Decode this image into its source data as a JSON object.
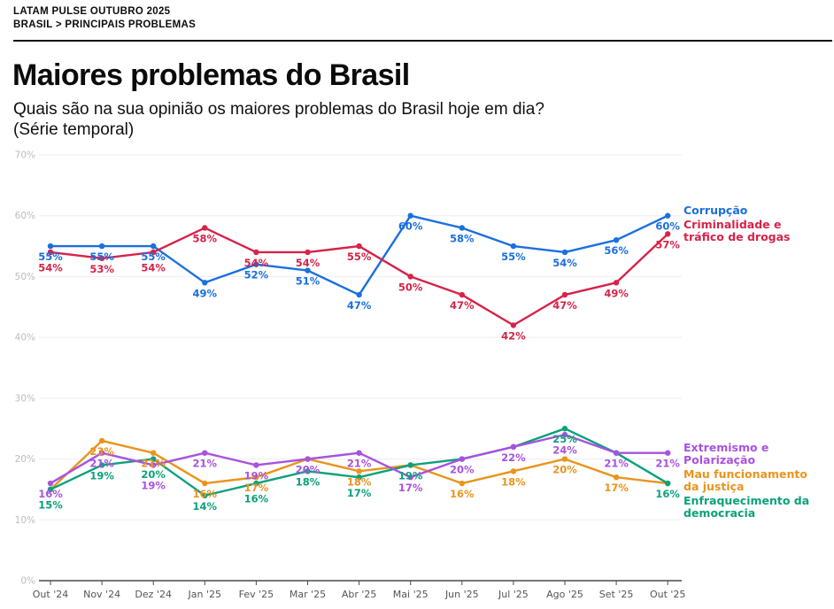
{
  "header": {
    "line1": "LATAM PULSE OUTUBRO 2025",
    "line2": "BRASIL > PRINCIPAIS PROBLEMAS"
  },
  "title": "Maiores problemas do Brasil",
  "subtitle_line1": "Quais são na sua opinião os maiores problemas do Brasil hoje em dia?",
  "subtitle_line2": "(Série temporal)",
  "chart_data": {
    "type": "line",
    "unit": "%",
    "categories": [
      "Out '24",
      "Nov '24",
      "Dez '24",
      "Jan '25",
      "Fev '25",
      "Mar '25",
      "Abr '25",
      "Mai '25",
      "Jun '25",
      "Jul '25",
      "Ago '25",
      "Set '25",
      "Out '25"
    ],
    "yticks": [
      0,
      10,
      20,
      30,
      40,
      50,
      60,
      70
    ],
    "ylim": [
      0,
      70
    ],
    "grid": true,
    "legend_position": "right",
    "axis_color": "#4a4a4a",
    "grid_color": "#ededed",
    "ytick_color": "#bdbdbd",
    "xtick_color": "#555555",
    "series": [
      {
        "name": "Corrupção",
        "color": "#1b6fe0",
        "legend_lines": [
          "Corrupção"
        ],
        "values": [
          55,
          55,
          55,
          49,
          52,
          51,
          47,
          60,
          58,
          55,
          54,
          56,
          60
        ]
      },
      {
        "name": "Criminalidade e tráfico de drogas",
        "color": "#d62349",
        "legend_lines": [
          "Criminalidade e",
          "tráfico de drogas"
        ],
        "values": [
          54,
          53,
          54,
          58,
          54,
          54,
          55,
          50,
          47,
          42,
          47,
          49,
          57
        ]
      },
      {
        "name": "Extremismo e Polarização",
        "color": "#a852e0",
        "legend_lines": [
          "Extremismo e",
          "Polarização"
        ],
        "values": [
          16,
          21,
          19,
          21,
          19,
          20,
          21,
          17,
          20,
          22,
          24,
          21,
          21
        ]
      },
      {
        "name": "Mau funcionamento da justiça",
        "color": "#e9941d",
        "legend_lines": [
          "Mau funcionamento",
          "da justiça"
        ],
        "values": [
          15,
          23,
          21,
          16,
          17,
          20,
          18,
          19,
          16,
          18,
          20,
          17,
          16
        ]
      },
      {
        "name": "Enfraquecimento da democracia",
        "color": "#0ba17b",
        "legend_lines": [
          "Enfraquecimento da",
          "democracia"
        ],
        "values": [
          15,
          19,
          20,
          14,
          16,
          18,
          17,
          19,
          20,
          22,
          25,
          21,
          16
        ]
      }
    ]
  }
}
